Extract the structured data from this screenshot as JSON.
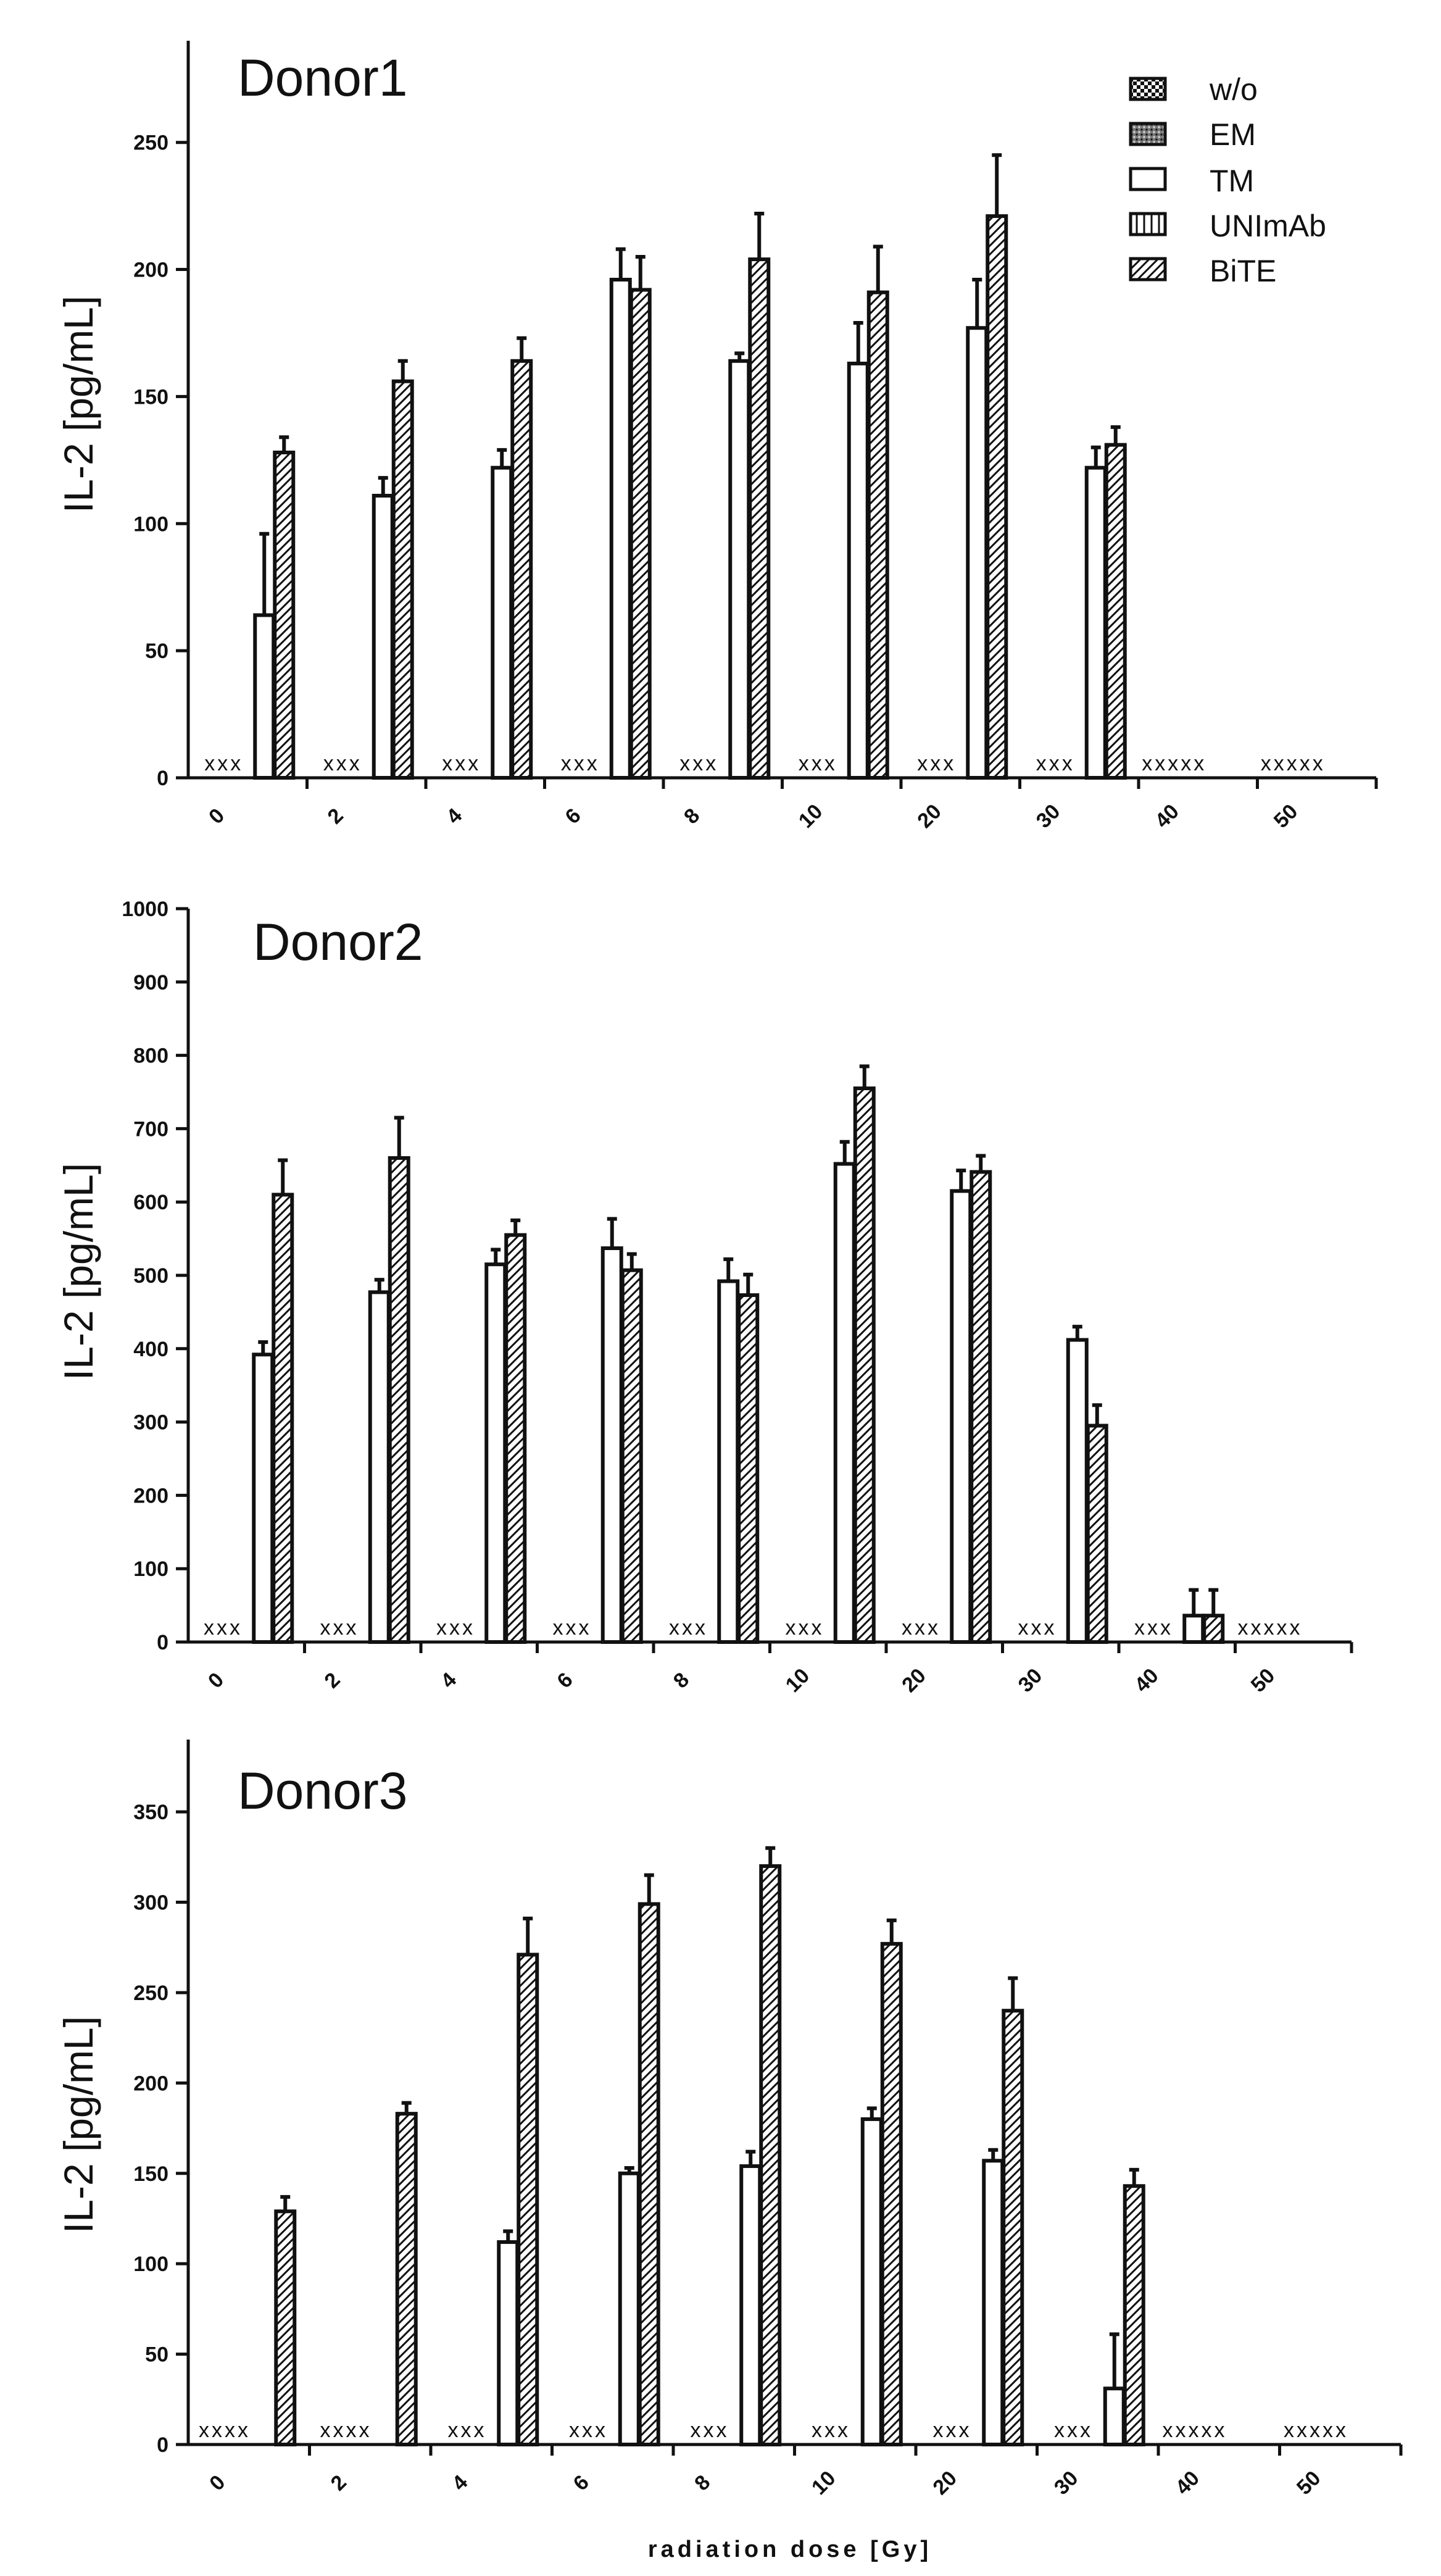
{
  "chart_data": [
    {
      "type": "bar",
      "title": "Donor1",
      "ylabel": "IL-2 [pg/mL]",
      "xlabel": "",
      "ylim": [
        0,
        290
      ],
      "yticks": [
        0,
        50,
        100,
        150,
        200,
        250
      ],
      "categories": [
        "0",
        "2",
        "4",
        "6",
        "8",
        "10",
        "20",
        "30",
        "40",
        "50"
      ],
      "series": [
        {
          "name": "TM",
          "values": [
            64,
            111,
            122,
            196,
            164,
            163,
            177,
            122,
            null,
            null
          ],
          "errors": [
            32,
            7,
            7,
            12,
            3,
            16,
            19,
            8,
            null,
            null
          ]
        },
        {
          "name": "BiTE",
          "values": [
            128,
            156,
            164,
            192,
            204,
            191,
            221,
            131,
            null,
            null
          ],
          "errors": [
            6,
            8,
            9,
            13,
            18,
            18,
            24,
            7,
            null,
            null
          ]
        }
      ],
      "markers": [
        "xxx",
        "xxx",
        "xxx",
        "xxx",
        "xxx",
        "xxx",
        "xxx",
        "xxx",
        "xxxxx",
        "xxxxx"
      ],
      "legend": [
        "w/o",
        "EM",
        "TM",
        "UNImAb",
        "BiTE"
      ]
    },
    {
      "type": "bar",
      "title": "Donor2",
      "ylabel": "IL-2 [pg/mL]",
      "xlabel": "",
      "ylim": [
        0,
        1000
      ],
      "yticks": [
        0,
        100,
        200,
        300,
        400,
        500,
        600,
        700,
        800,
        900,
        1000
      ],
      "categories": [
        "0",
        "2",
        "4",
        "6",
        "8",
        "10",
        "20",
        "30",
        "40",
        "50"
      ],
      "series": [
        {
          "name": "TM",
          "values": [
            392,
            477,
            515,
            537,
            492,
            652,
            615,
            412,
            36,
            null
          ],
          "errors": [
            17,
            17,
            20,
            40,
            30,
            30,
            28,
            18,
            35,
            null
          ]
        },
        {
          "name": "BiTE",
          "values": [
            610,
            660,
            555,
            507,
            473,
            755,
            641,
            295,
            36,
            null
          ],
          "errors": [
            47,
            55,
            20,
            22,
            28,
            30,
            22,
            28,
            35,
            null
          ]
        }
      ],
      "markers": [
        "xxx",
        "xxx",
        "xxx",
        "xxx",
        "xxx",
        "xxx",
        "xxx",
        "xxx",
        "xxx",
        "xxxxx"
      ]
    },
    {
      "type": "bar",
      "title": "Donor3",
      "ylabel": "IL-2 [pg/mL]",
      "xlabel": "radiation dose [Gy]",
      "ylim": [
        0,
        390
      ],
      "yticks": [
        0,
        50,
        100,
        150,
        200,
        250,
        300,
        350
      ],
      "categories": [
        "0",
        "2",
        "4",
        "6",
        "8",
        "10",
        "20",
        "30",
        "40",
        "50"
      ],
      "series": [
        {
          "name": "TM",
          "values": [
            null,
            null,
            112,
            150,
            154,
            180,
            157,
            31,
            null,
            null
          ],
          "errors": [
            null,
            null,
            6,
            3,
            8,
            6,
            6,
            30,
            null,
            null
          ]
        },
        {
          "name": "BiTE",
          "values": [
            129,
            183,
            271,
            299,
            320,
            277,
            240,
            143,
            null,
            null
          ],
          "errors": [
            8,
            6,
            20,
            16,
            10,
            13,
            18,
            9,
            null,
            null
          ]
        }
      ],
      "markers": [
        "xxxx",
        "xxxx",
        "xxx",
        "xxx",
        "xxx",
        "xxx",
        "xxx",
        "xxx",
        "xxxxx",
        "xxxxx"
      ]
    }
  ]
}
